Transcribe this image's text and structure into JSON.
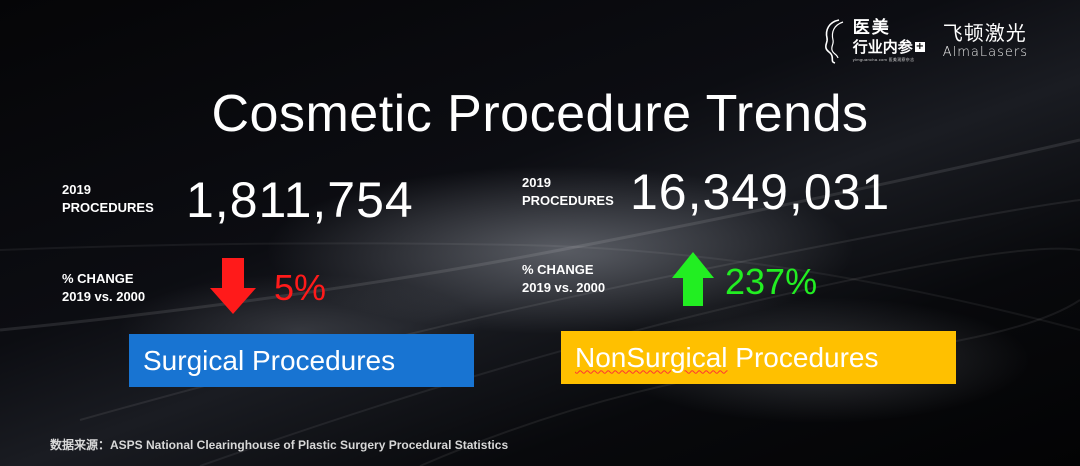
{
  "logo": {
    "yimei_line1": "医美",
    "yimei_line2": "行业内参",
    "yimei_plus": "+",
    "yimei_tiny": "yimguancha.com 医美观察杂志",
    "alma_cn": "飞顿激光",
    "alma_en": "AlmaLasers"
  },
  "title": "Cosmetic Procedure Trends",
  "surgical": {
    "procedures_label_line1": "2019",
    "procedures_label_line2": "PROCEDURES",
    "procedures_value": "1,811,754",
    "change_label_line1": "% CHANGE",
    "change_label_line2": "2019 vs. 2000",
    "change_direction": "down",
    "change_value": "5%",
    "category": "Surgical Procedures"
  },
  "nonsurgical": {
    "procedures_label_line1": "2019",
    "procedures_label_line2": "PROCEDURES",
    "procedures_value": "16,349,031",
    "change_label_line1": "% CHANGE",
    "change_label_line2": "2019 vs. 2000",
    "change_direction": "up",
    "change_value": "237%",
    "category_part1": "NonSurgical",
    "category_part2": " Procedures"
  },
  "source": "数据来源：ASPS National Clearinghouse of  Plastic Surgery Procedural Statistics",
  "colors": {
    "surgical_box": "#1874d2",
    "nonsurgical_box": "#ffc000",
    "down_arrow": "#ff1a1a",
    "up_arrow": "#22ee22"
  }
}
